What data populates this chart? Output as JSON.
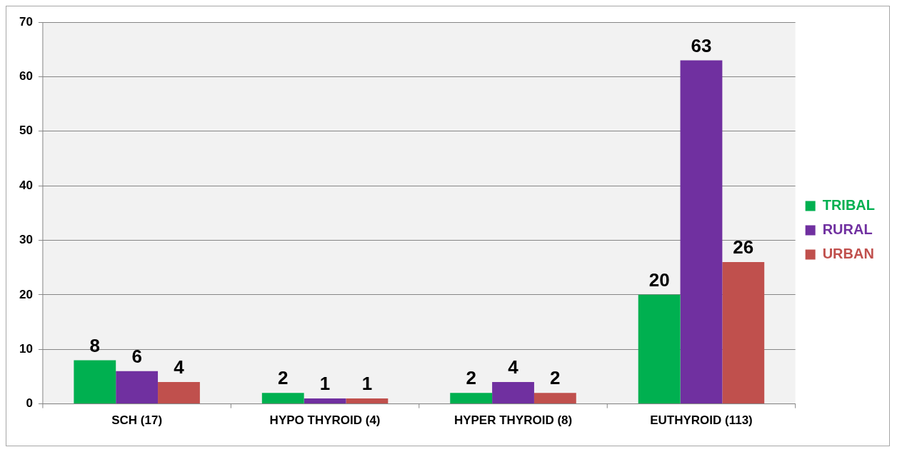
{
  "chart_data": {
    "type": "bar",
    "categories": [
      "SCH (17)",
      "HYPO THYROID (4)",
      "HYPER THYROID (8)",
      "EUTHYROID (113)"
    ],
    "series": [
      {
        "name": "TRIBAL",
        "color": "#00b050",
        "values": [
          8,
          2,
          2,
          20
        ]
      },
      {
        "name": "RURAL",
        "color": "#7030a0",
        "values": [
          6,
          1,
          4,
          63
        ]
      },
      {
        "name": "URBAN",
        "color": "#c0504d",
        "values": [
          4,
          1,
          2,
          26
        ]
      }
    ],
    "ylim": [
      0,
      70
    ],
    "yticks": [
      0,
      10,
      20,
      30,
      40,
      50,
      60,
      70
    ],
    "grid": "y",
    "legend": "right",
    "data_labels": true
  }
}
